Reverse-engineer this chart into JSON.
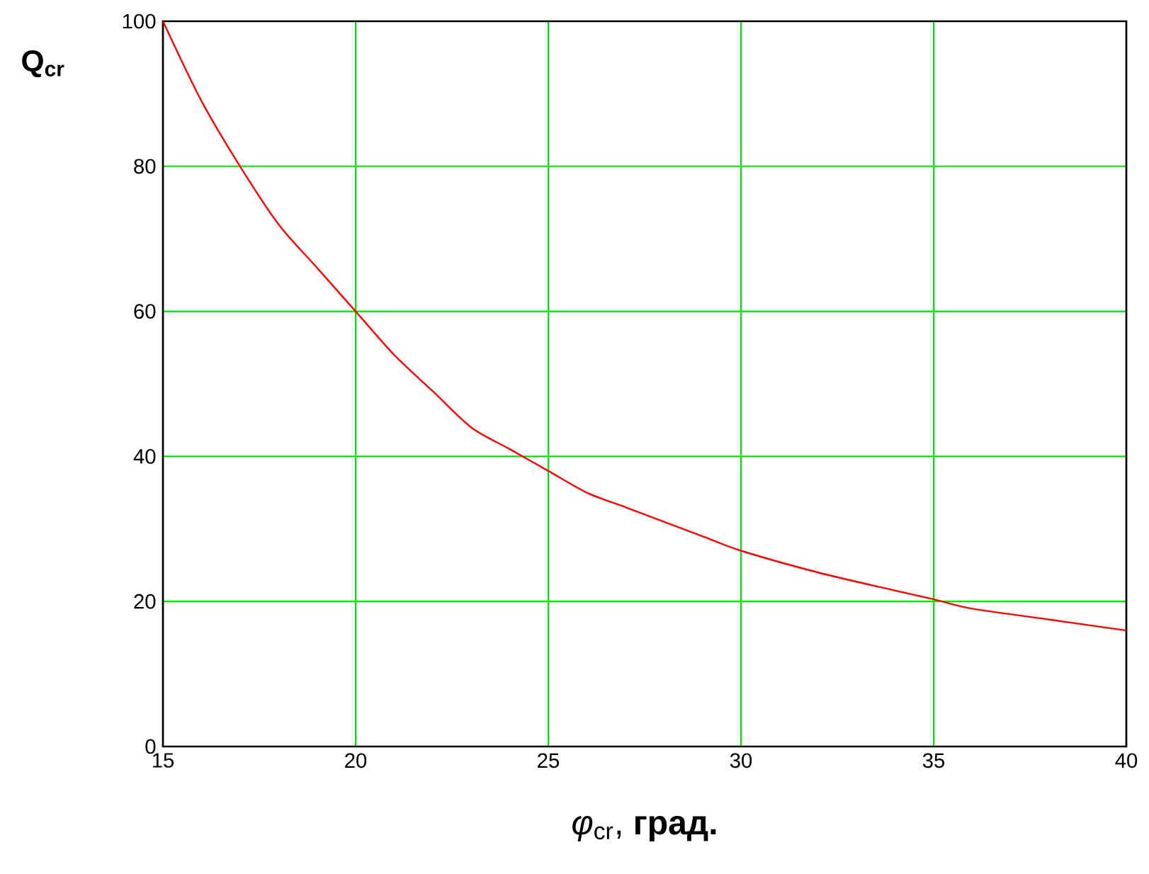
{
  "chart_data": {
    "type": "line",
    "xlabel": "*φ*$_{cr}$, **град.**",
    "ylabel": "Q$_{cr}$",
    "x": [
      15,
      16,
      17,
      18,
      19,
      20,
      21,
      22,
      23,
      24,
      25,
      26,
      27,
      28,
      29,
      30,
      32,
      34,
      35,
      36,
      38,
      40
    ],
    "series": [
      {
        "color": "#ff0000",
        "values": [
          100,
          89,
          80,
          72,
          66,
          60,
          54,
          49,
          44,
          41,
          38,
          35,
          33,
          31,
          29,
          27,
          24,
          21.5,
          20.3,
          19,
          17.5,
          16
        ]
      }
    ],
    "xlim": [
      15,
      40
    ],
    "ylim": [
      0,
      100
    ],
    "xticks": [
      15,
      20,
      25,
      30,
      35,
      40
    ],
    "yticks": [
      0,
      20,
      40,
      60,
      80,
      100
    ],
    "grid": true,
    "marker": "none",
    "line_style": "solid"
  }
}
